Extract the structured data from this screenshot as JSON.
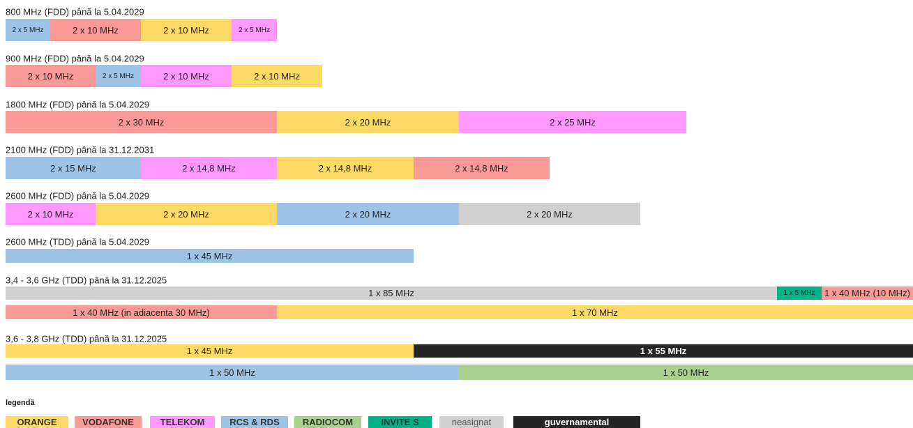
{
  "bands": [
    {
      "label": "800 MHz (FDD) până la 5.04.2029",
      "rows": [
        [
          {
            "text": "2 x 5 MHz",
            "color": "#9dc3e6"
          },
          {
            "text": "2 x 10 MHz",
            "color": "#fa9a96"
          },
          {
            "text": "2 x 10 MHz",
            "color": "#ffd966"
          },
          {
            "text": "2 x 5 MHz",
            "color": "#ff99ff"
          }
        ]
      ]
    },
    {
      "label": "900 MHz (FDD) până la 5.04.2029",
      "rows": [
        [
          {
            "text": "2 x 10 MHz",
            "color": "#fa9a96"
          },
          {
            "text": "2 x 5 MHz",
            "color": "#9dc3e6"
          },
          {
            "text": "2 x 10 MHz",
            "color": "#ff99ff"
          },
          {
            "text": "2 x 10 MHz",
            "color": "#ffd966"
          }
        ]
      ]
    },
    {
      "label": "1800 MHz (FDD) până la 5.04.2029",
      "rows": [
        [
          {
            "text": "2 x 30 MHz",
            "color": "#fa9a96"
          },
          {
            "text": "2 x 20 MHz",
            "color": "#ffd966"
          },
          {
            "text": "2 x 25 MHz",
            "color": "#ff99ff"
          }
        ]
      ]
    },
    {
      "label": "2100 MHz (FDD) până la 31.12.2031",
      "rows": [
        [
          {
            "text": "2 x 15 MHz",
            "color": "#9dc3e6"
          },
          {
            "text": "2 x 14,8 MHz",
            "color": "#ff99ff"
          },
          {
            "text": "2 x 14,8 MHz",
            "color": "#ffd966"
          },
          {
            "text": "2 x 14,8 MHz",
            "color": "#fa9a96"
          }
        ]
      ]
    },
    {
      "label": "2600 MHz (FDD) până la 5.04.2029",
      "rows": [
        [
          {
            "text": "2 x 10 MHz",
            "color": "#ff99ff"
          },
          {
            "text": "2 x 20 MHz",
            "color": "#ffd966"
          },
          {
            "text": "2 x 20 MHz",
            "color": "#9dc3e6"
          },
          {
            "text": "2 x 20 MHz",
            "color": "#d0d0d0"
          }
        ]
      ]
    },
    {
      "label": "2600 MHz (TDD) până la 5.04.2029",
      "rows": [
        [
          {
            "text": "1 x 45 MHz",
            "color": "#9dc3e6"
          }
        ]
      ]
    },
    {
      "label": "3,4 - 3,6 GHz (TDD) până la 31.12.2025",
      "rows": [
        [
          {
            "text": "1 x 85 MHz",
            "color": "#d0d0d0"
          },
          {
            "text": "1 x 5 MHz",
            "color": "#00b386"
          },
          {
            "text": "1 x 40 MHz (10 MHz)",
            "color": "#fa9a96"
          }
        ],
        [
          {
            "text": "1 x 40 MHz (in adiacenta 30 MHz)",
            "color": "#fa9a96"
          },
          {
            "text": "1 x 70 MHz",
            "color": "#ffd966"
          }
        ]
      ]
    },
    {
      "label": "3,6 - 3,8 GHz (TDD) până la 31.12.2025",
      "rows": [
        [
          {
            "text": "1 x 45 MHz",
            "color": "#ffd966"
          },
          {
            "text": "1 x 55 MHz",
            "color": "#262626"
          }
        ],
        [
          {
            "text": "1 x 50 MHz",
            "color": "#9dc3e6"
          },
          {
            "text": "1 x 50 MHz",
            "color": "#a9d18e"
          }
        ]
      ]
    }
  ],
  "legend": {
    "title": "legendă",
    "items": [
      {
        "text": "ORANGE",
        "color": "#ffd966"
      },
      {
        "text": "VODAFONE",
        "color": "#fa9a96"
      },
      {
        "text": "TELEKOM",
        "color": "#ff99ff"
      },
      {
        "text": "RCS & RDS",
        "color": "#9dc3e6"
      },
      {
        "text": "RADIOCOM",
        "color": "#a9d18e"
      },
      {
        "text": "INVITE S",
        "color": "#00b386"
      },
      {
        "text": "neasignat",
        "color": "#d0d0d0"
      },
      {
        "text": "guvernamental",
        "color": "#262626"
      }
    ]
  }
}
